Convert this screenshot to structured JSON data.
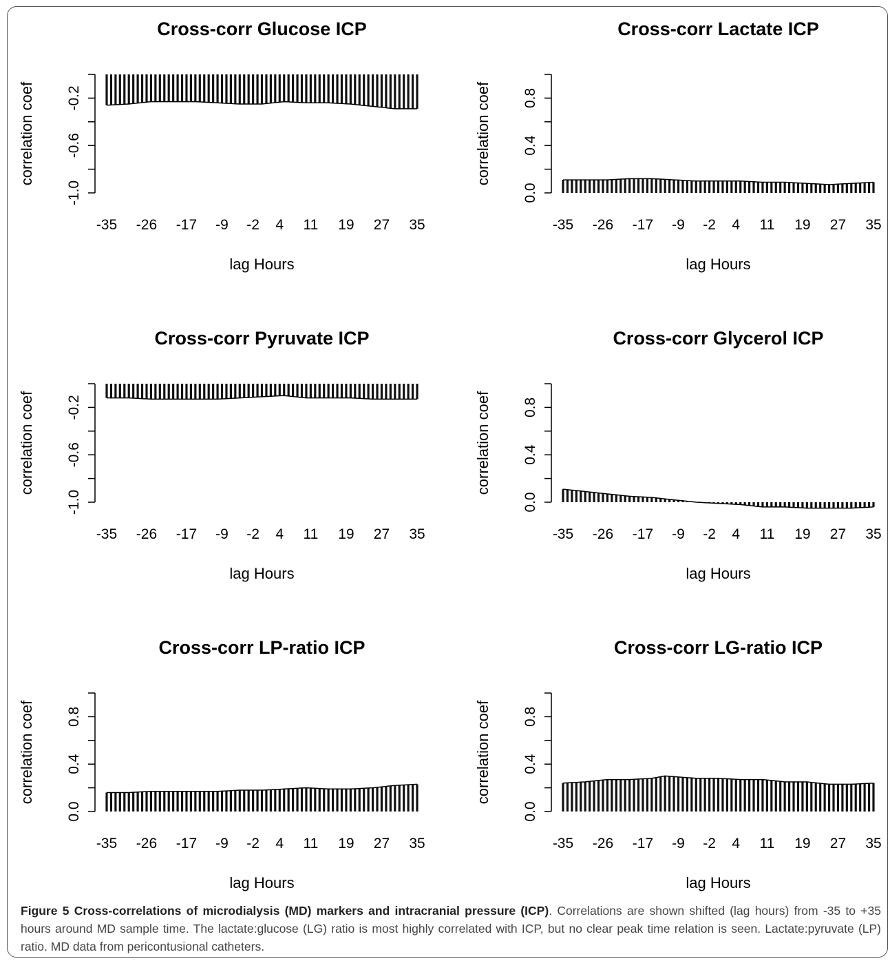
{
  "figure": {
    "caption": {
      "lead": "Figure 5 Cross-correlations of microdialysis (MD) markers and intracranial pressure (ICP)",
      "body": ". Correlations are shown shifted (lag hours) from -35 to +35 hours around MD sample time. The lactate:glucose (LG) ratio is most highly correlated with ICP, but no clear peak time relation is seen. Lactate:pyruvate (LP) ratio. MD data from pericontusional catheters."
    }
  },
  "chart_data": [
    {
      "type": "bar",
      "title": "Cross-corr Glucose ICP",
      "xlabel": "lag Hours",
      "ylabel": "correlation coef",
      "xlim": [
        -35,
        35
      ],
      "ylim": [
        -1.0,
        0.0
      ],
      "yticks": [
        "-1.0",
        "-0.6",
        "-0.2"
      ],
      "ytick_values": [
        -1.0,
        -0.6,
        -0.2
      ],
      "xticks": [
        "-35",
        "-26",
        "-17",
        "-9",
        "-2",
        "4",
        "11",
        "19",
        "27",
        "35"
      ],
      "knots": [
        [
          -35,
          -0.26
        ],
        [
          -30,
          -0.25
        ],
        [
          -25,
          -0.23
        ],
        [
          -20,
          -0.23
        ],
        [
          -15,
          -0.23
        ],
        [
          -10,
          -0.24
        ],
        [
          -5,
          -0.25
        ],
        [
          0,
          -0.25
        ],
        [
          5,
          -0.23
        ],
        [
          10,
          -0.24
        ],
        [
          15,
          -0.24
        ],
        [
          20,
          -0.25
        ],
        [
          25,
          -0.27
        ],
        [
          30,
          -0.29
        ],
        [
          35,
          -0.29
        ]
      ]
    },
    {
      "type": "bar",
      "title": "Cross-corr Lactate ICP",
      "xlabel": "lag Hours",
      "ylabel": "correlation coef",
      "xlim": [
        -35,
        35
      ],
      "ylim": [
        0.0,
        1.0
      ],
      "yticks": [
        "0.0",
        "0.4",
        "0.8"
      ],
      "ytick_values": [
        0.0,
        0.4,
        0.8
      ],
      "xticks": [
        "-35",
        "-26",
        "-17",
        "-9",
        "-2",
        "4",
        "11",
        "19",
        "27",
        "35"
      ],
      "knots": [
        [
          -35,
          0.11
        ],
        [
          -30,
          0.11
        ],
        [
          -25,
          0.11
        ],
        [
          -20,
          0.12
        ],
        [
          -15,
          0.12
        ],
        [
          -10,
          0.11
        ],
        [
          -5,
          0.1
        ],
        [
          0,
          0.1
        ],
        [
          5,
          0.1
        ],
        [
          10,
          0.09
        ],
        [
          15,
          0.09
        ],
        [
          20,
          0.08
        ],
        [
          25,
          0.07
        ],
        [
          30,
          0.08
        ],
        [
          35,
          0.09
        ]
      ]
    },
    {
      "type": "bar",
      "title": "Cross-corr Pyruvate ICP",
      "xlabel": "lag Hours",
      "ylabel": "correlation coef",
      "xlim": [
        -35,
        35
      ],
      "ylim": [
        -1.0,
        0.0
      ],
      "yticks": [
        "-1.0",
        "-0.6",
        "-0.2"
      ],
      "ytick_values": [
        -1.0,
        -0.6,
        -0.2
      ],
      "xticks": [
        "-35",
        "-26",
        "-17",
        "-9",
        "-2",
        "4",
        "11",
        "19",
        "27",
        "35"
      ],
      "knots": [
        [
          -35,
          -0.12
        ],
        [
          -30,
          -0.12
        ],
        [
          -25,
          -0.13
        ],
        [
          -20,
          -0.13
        ],
        [
          -15,
          -0.13
        ],
        [
          -10,
          -0.13
        ],
        [
          -5,
          -0.12
        ],
        [
          0,
          -0.11
        ],
        [
          5,
          -0.1
        ],
        [
          10,
          -0.12
        ],
        [
          15,
          -0.12
        ],
        [
          20,
          -0.12
        ],
        [
          25,
          -0.13
        ],
        [
          30,
          -0.13
        ],
        [
          35,
          -0.13
        ]
      ]
    },
    {
      "type": "bar",
      "title": "Cross-corr Glycerol ICP",
      "xlabel": "lag Hours",
      "ylabel": "correlation coef",
      "xlim": [
        -35,
        35
      ],
      "ylim": [
        0.0,
        1.0
      ],
      "yticks": [
        "0.0",
        "0.4",
        "0.8"
      ],
      "ytick_values": [
        0.0,
        0.4,
        0.8
      ],
      "xticks": [
        "-35",
        "-26",
        "-17",
        "-9",
        "-2",
        "4",
        "11",
        "19",
        "27",
        "35"
      ],
      "knots": [
        [
          -35,
          0.11
        ],
        [
          -30,
          0.09
        ],
        [
          -25,
          0.07
        ],
        [
          -20,
          0.05
        ],
        [
          -15,
          0.04
        ],
        [
          -10,
          0.02
        ],
        [
          -5,
          0.0
        ],
        [
          0,
          -0.01
        ],
        [
          5,
          -0.02
        ],
        [
          10,
          -0.04
        ],
        [
          15,
          -0.04
        ],
        [
          20,
          -0.05
        ],
        [
          25,
          -0.05
        ],
        [
          30,
          -0.05
        ],
        [
          35,
          -0.04
        ]
      ]
    },
    {
      "type": "bar",
      "title": "Cross-corr LP-ratio ICP",
      "xlabel": "lag Hours",
      "ylabel": "correlation coef",
      "xlim": [
        -35,
        35
      ],
      "ylim": [
        0.0,
        1.0
      ],
      "yticks": [
        "0.0",
        "0.4",
        "0.8"
      ],
      "ytick_values": [
        0.0,
        0.4,
        0.8
      ],
      "xticks": [
        "-35",
        "-26",
        "-17",
        "-9",
        "-2",
        "4",
        "11",
        "19",
        "27",
        "35"
      ],
      "knots": [
        [
          -35,
          0.16
        ],
        [
          -30,
          0.16
        ],
        [
          -25,
          0.17
        ],
        [
          -20,
          0.17
        ],
        [
          -15,
          0.17
        ],
        [
          -10,
          0.17
        ],
        [
          -5,
          0.18
        ],
        [
          0,
          0.18
        ],
        [
          5,
          0.19
        ],
        [
          10,
          0.2
        ],
        [
          15,
          0.19
        ],
        [
          20,
          0.19
        ],
        [
          25,
          0.2
        ],
        [
          30,
          0.22
        ],
        [
          35,
          0.23
        ]
      ]
    },
    {
      "type": "bar",
      "title": "Cross-corr LG-ratio ICP",
      "xlabel": "lag Hours",
      "ylabel": "correlation coef",
      "xlim": [
        -35,
        35
      ],
      "ylim": [
        0.0,
        1.0
      ],
      "yticks": [
        "0.0",
        "0.4",
        "0.8"
      ],
      "ytick_values": [
        0.0,
        0.4,
        0.8
      ],
      "xticks": [
        "-35",
        "-26",
        "-17",
        "-9",
        "-2",
        "4",
        "11",
        "19",
        "27",
        "35"
      ],
      "knots": [
        [
          -35,
          0.24
        ],
        [
          -30,
          0.25
        ],
        [
          -25,
          0.27
        ],
        [
          -20,
          0.27
        ],
        [
          -15,
          0.28
        ],
        [
          -12,
          0.3
        ],
        [
          -5,
          0.28
        ],
        [
          0,
          0.28
        ],
        [
          5,
          0.27
        ],
        [
          10,
          0.27
        ],
        [
          15,
          0.25
        ],
        [
          20,
          0.25
        ],
        [
          25,
          0.23
        ],
        [
          30,
          0.23
        ],
        [
          35,
          0.24
        ]
      ]
    }
  ]
}
